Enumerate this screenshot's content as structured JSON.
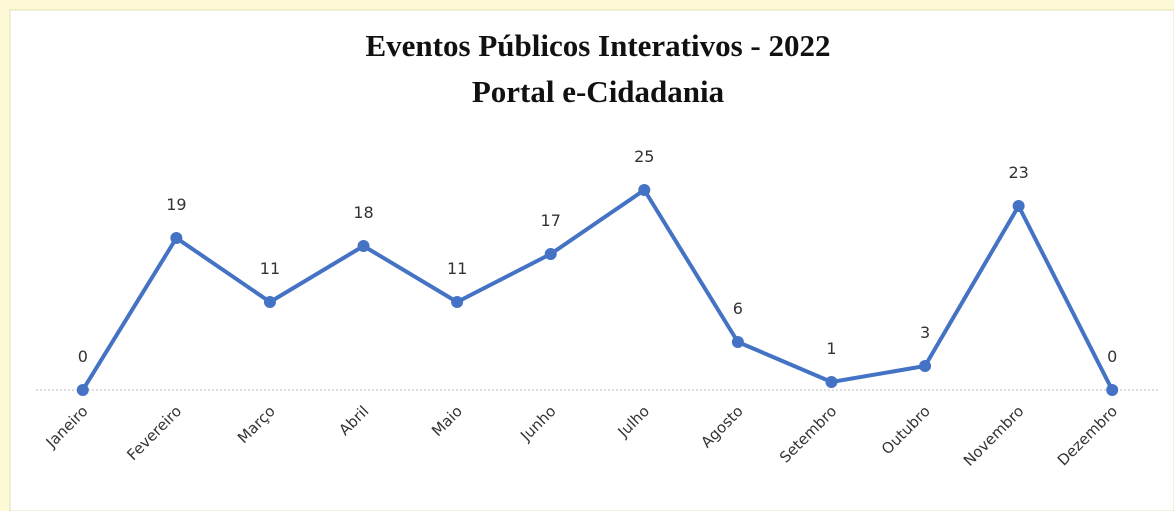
{
  "chart_data": {
    "type": "line",
    "title": "Eventos Públicos Interativos - 2022",
    "subtitle": "Portal e-Cidadania",
    "categories": [
      "Janeiro",
      "Fevereiro",
      "Março",
      "Abril",
      "Maio",
      "Junho",
      "Julho",
      "Agosto",
      "Setembro",
      "Outubro",
      "Novembro",
      "Dezembro"
    ],
    "values": [
      0,
      19,
      11,
      18,
      11,
      17,
      25,
      6,
      1,
      3,
      23,
      0
    ],
    "color": "#4472c4",
    "ylim": [
      0,
      30
    ]
  }
}
